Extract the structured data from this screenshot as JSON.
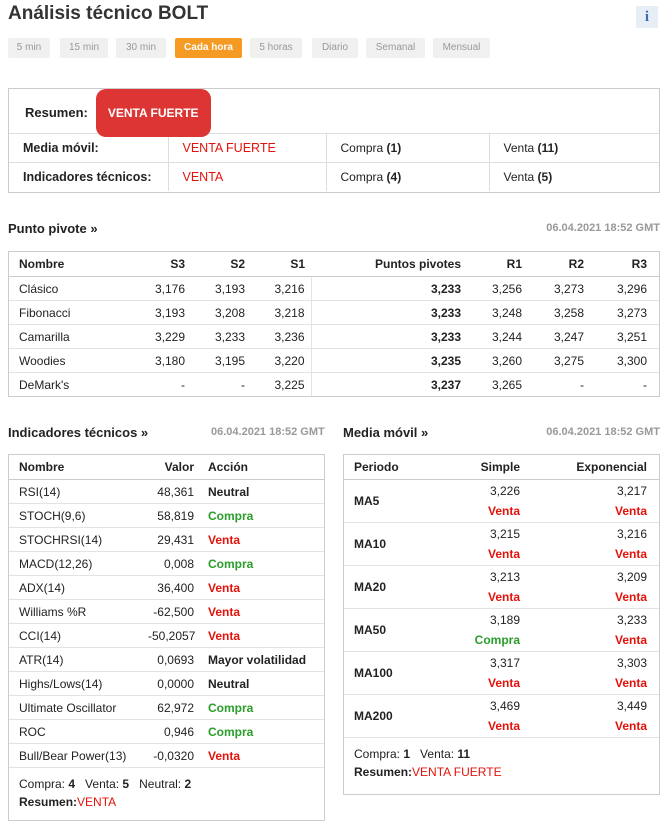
{
  "header": {
    "title": "Análisis técnico BOLT",
    "info": "i"
  },
  "timeframes": {
    "items": [
      "5 min",
      "15 min",
      "30 min",
      "Cada hora",
      "5 horas",
      "Diario",
      "Semanal",
      "Mensual"
    ],
    "active": 3
  },
  "summary": {
    "label": "Resumen:",
    "badge": "VENTA FUERTE",
    "rows": [
      {
        "label": "Media móvil:",
        "signal": "VENTA FUERTE",
        "signal_color": "#e3120b",
        "buy": "Compra",
        "buy_count": "(1)",
        "sell": "Venta",
        "sell_count": "(11)"
      },
      {
        "label": "Indicadores técnicos:",
        "signal": "VENTA",
        "signal_color": "#e3120b",
        "buy": "Compra",
        "buy_count": "(4)",
        "sell": "Venta",
        "sell_count": "(5)"
      }
    ]
  },
  "pivot": {
    "title": "Punto pivote »",
    "timestamp": "06.04.2021 18:52 GMT",
    "headers": [
      "Nombre",
      "S3",
      "S2",
      "S1",
      "Puntos pivotes",
      "R1",
      "R2",
      "R3"
    ],
    "rows": [
      [
        "Clásico",
        "3,176",
        "3,193",
        "3,216",
        "3,233",
        "3,256",
        "3,273",
        "3,296"
      ],
      [
        "Fibonacci",
        "3,193",
        "3,208",
        "3,218",
        "3,233",
        "3,248",
        "3,258",
        "3,273"
      ],
      [
        "Camarilla",
        "3,229",
        "3,233",
        "3,236",
        "3,233",
        "3,244",
        "3,247",
        "3,251"
      ],
      [
        "Woodies",
        "3,180",
        "3,195",
        "3,220",
        "3,235",
        "3,260",
        "3,275",
        "3,300"
      ],
      [
        "DeMark's",
        "-",
        "-",
        "3,225",
        "3,237",
        "3,265",
        "-",
        "-"
      ]
    ]
  },
  "indicators": {
    "title": "Indicadores técnicos »",
    "timestamp": "06.04.2021 18:52 GMT",
    "headers": [
      "Nombre",
      "Valor",
      "Acción"
    ],
    "rows": [
      {
        "name": "RSI(14)",
        "value": "48,361",
        "action": "Neutral",
        "color": "#222222"
      },
      {
        "name": "STOCH(9,6)",
        "value": "58,819",
        "action": "Compra",
        "color": "#2a9d2a"
      },
      {
        "name": "STOCHRSI(14)",
        "value": "29,431",
        "action": "Venta",
        "color": "#e3120b"
      },
      {
        "name": "MACD(12,26)",
        "value": "0,008",
        "action": "Compra",
        "color": "#2a9d2a"
      },
      {
        "name": "ADX(14)",
        "value": "36,400",
        "action": "Venta",
        "color": "#e3120b"
      },
      {
        "name": "Williams %R",
        "value": "-62,500",
        "action": "Venta",
        "color": "#e3120b"
      },
      {
        "name": "CCI(14)",
        "value": "-50,2057",
        "action": "Venta",
        "color": "#e3120b"
      },
      {
        "name": "ATR(14)",
        "value": "0,0693",
        "action": "Mayor volatilidad",
        "color": "#222222"
      },
      {
        "name": "Highs/Lows(14)",
        "value": "0,0000",
        "action": "Neutral",
        "color": "#222222"
      },
      {
        "name": "Ultimate Oscillator",
        "value": "62,972",
        "action": "Compra",
        "color": "#2a9d2a"
      },
      {
        "name": "ROC",
        "value": "0,946",
        "action": "Compra",
        "color": "#2a9d2a"
      },
      {
        "name": "Bull/Bear Power(13)",
        "value": "-0,0320",
        "action": "Venta",
        "color": "#e3120b"
      }
    ],
    "footer": {
      "buy_label": "Compra:",
      "buy": "4",
      "sell_label": "Venta:",
      "sell": "5",
      "neutral_label": "Neutral:",
      "neutral": "2",
      "summary_label": "Resumen:",
      "summary": "VENTA"
    }
  },
  "moving_averages": {
    "title": "Media móvil »",
    "timestamp": "06.04.2021 18:52 GMT",
    "headers": [
      "Periodo",
      "Simple",
      "Exponencial"
    ],
    "rows": [
      {
        "name": "MA5",
        "simple": "3,226",
        "simple_action": "Venta",
        "simple_color": "#e3120b",
        "exp": "3,217",
        "exp_action": "Venta",
        "exp_color": "#e3120b"
      },
      {
        "name": "MA10",
        "simple": "3,215",
        "simple_action": "Venta",
        "simple_color": "#e3120b",
        "exp": "3,216",
        "exp_action": "Venta",
        "exp_color": "#e3120b"
      },
      {
        "name": "MA20",
        "simple": "3,213",
        "simple_action": "Venta",
        "simple_color": "#e3120b",
        "exp": "3,209",
        "exp_action": "Venta",
        "exp_color": "#e3120b"
      },
      {
        "name": "MA50",
        "simple": "3,189",
        "simple_action": "Compra",
        "simple_color": "#2a9d2a",
        "exp": "3,233",
        "exp_action": "Venta",
        "exp_color": "#e3120b"
      },
      {
        "name": "MA100",
        "simple": "3,317",
        "simple_action": "Venta",
        "simple_color": "#e3120b",
        "exp": "3,303",
        "exp_action": "Venta",
        "exp_color": "#e3120b"
      },
      {
        "name": "MA200",
        "simple": "3,469",
        "simple_action": "Venta",
        "simple_color": "#e3120b",
        "exp": "3,449",
        "exp_action": "Venta",
        "exp_color": "#e3120b"
      }
    ],
    "footer": {
      "buy_label": "Compra:",
      "buy": "1",
      "sell_label": "Venta:",
      "sell": "11",
      "summary_label": "Resumen:",
      "summary": "VENTA FUERTE"
    }
  }
}
